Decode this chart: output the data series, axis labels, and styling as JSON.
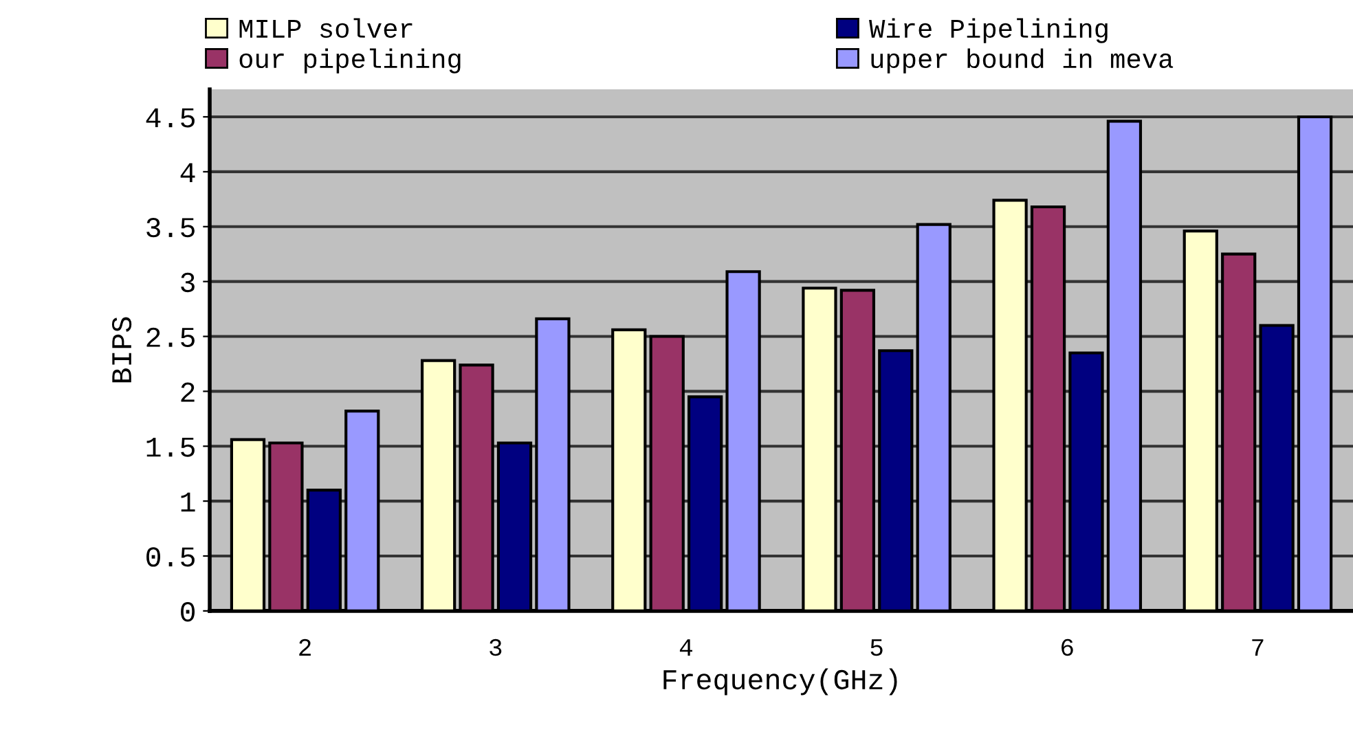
{
  "chart_data": {
    "type": "bar",
    "xlabel": "Frequency(GHz)",
    "ylabel": "BIPS",
    "categories": [
      "2",
      "3",
      "4",
      "5",
      "6",
      "7"
    ],
    "series": [
      {
        "name": "MILP solver",
        "color": "#ffffcc",
        "values": [
          1.56,
          2.28,
          2.56,
          2.94,
          3.74,
          3.46
        ]
      },
      {
        "name": "our pipelining",
        "color": "#993366",
        "values": [
          1.53,
          2.24,
          2.5,
          2.92,
          3.68,
          3.25
        ]
      },
      {
        "name": "Wire Pipelining",
        "color": "#000080",
        "values": [
          1.1,
          1.53,
          1.95,
          2.37,
          2.35,
          2.6
        ]
      },
      {
        "name": "upper bound in meva",
        "color": "#9999ff",
        "values": [
          1.82,
          2.66,
          3.09,
          3.52,
          4.46,
          4.5
        ]
      }
    ],
    "ylim": [
      0,
      4.75
    ],
    "yticks": [
      0,
      0.5,
      1,
      1.5,
      2,
      2.5,
      3,
      3.5,
      4,
      4.5
    ],
    "grid": "y",
    "legend": "top"
  }
}
